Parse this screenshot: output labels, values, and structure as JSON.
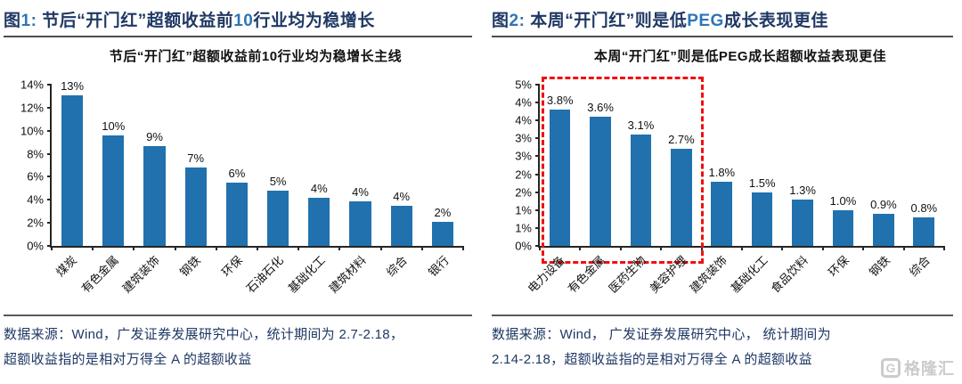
{
  "page": {
    "background": "#ffffff"
  },
  "colors": {
    "caption_navy": "#1f3864",
    "caption_blue": "#2e75b6",
    "bar_blue": "#2171ae",
    "highlight_red": "#ee1111",
    "logo_gray": "#cbcbcb"
  },
  "figures": [
    {
      "caption_parts": [
        {
          "text": "图",
          "color": "navy"
        },
        {
          "text": "1:",
          "color": "blue"
        },
        {
          "text": " 节后“开门红”超额收益前",
          "color": "navy"
        },
        {
          "text": "10",
          "color": "blue"
        },
        {
          "text": "行业均为稳增长",
          "color": "navy"
        }
      ],
      "source_lines": [
        "数据来源：Wind，广发证券发展研究中心，统计期间为 2.7-2.18，",
        "超额收益指的是相对万得全 A 的超额收益"
      ]
    },
    {
      "caption_parts": [
        {
          "text": "图",
          "color": "navy"
        },
        {
          "text": "2:",
          "color": "blue"
        },
        {
          "text": " 本周“开门红”则是低",
          "color": "navy"
        },
        {
          "text": "PEG",
          "color": "blue"
        },
        {
          "text": "成长表现更佳",
          "color": "navy"
        }
      ],
      "source_lines": [
        "数据来源：Wind， 广发证券发展研究中心， 统计期间为",
        "2.14-2.18，超额收益指的是相对万得全 A 的超额收益"
      ]
    }
  ],
  "chart_data": [
    {
      "type": "bar",
      "title": "节后“开门红”超额收益前10行业均为稳增长主线",
      "categories": [
        "煤炭",
        "有色金属",
        "建筑装饰",
        "钢铁",
        "环保",
        "石油石化",
        "基础化工",
        "建筑材料",
        "综合",
        "银行"
      ],
      "values": [
        13.1,
        9.6,
        8.7,
        6.8,
        5.5,
        4.8,
        4.2,
        3.9,
        3.5,
        2.1
      ],
      "bar_labels": [
        "13%",
        "10%",
        "9%",
        "7%",
        "6%",
        "5%",
        "4%",
        "4%",
        "4%",
        "2%"
      ],
      "ylim": [
        0,
        14
      ],
      "yticks": [
        {
          "v": 0,
          "label": "0%"
        },
        {
          "v": 2,
          "label": "2%"
        },
        {
          "v": 4,
          "label": "4%"
        },
        {
          "v": 6,
          "label": "6%"
        },
        {
          "v": 8,
          "label": "8%"
        },
        {
          "v": 10,
          "label": "10%"
        },
        {
          "v": 12,
          "label": "12%"
        },
        {
          "v": 14,
          "label": "14%"
        }
      ],
      "bar_color": "#2171ae",
      "grid": false,
      "legend": "none"
    },
    {
      "type": "bar",
      "title": "本周“开门红”则是低PEG成长超额收益表现更佳",
      "categories": [
        "电力设备",
        "有色金属",
        "医药生物",
        "美容护理",
        "建筑装饰",
        "基础化工",
        "食品饮料",
        "环保",
        "钢铁",
        "综合"
      ],
      "values": [
        3.8,
        3.6,
        3.1,
        2.7,
        1.8,
        1.5,
        1.3,
        1.0,
        0.9,
        0.8
      ],
      "bar_labels": [
        "3.8%",
        "3.6%",
        "3.1%",
        "2.7%",
        "1.8%",
        "1.5%",
        "1.3%",
        "1.0%",
        "0.9%",
        "0.8%"
      ],
      "ylim": [
        0,
        4.5
      ],
      "yticks": [
        {
          "v": 0,
          "label": "0%"
        },
        {
          "v": 0.5,
          "label": "1%"
        },
        {
          "v": 1,
          "label": "1%"
        },
        {
          "v": 1.5,
          "label": "2%"
        },
        {
          "v": 2,
          "label": "2%"
        },
        {
          "v": 2.5,
          "label": "3%"
        },
        {
          "v": 3,
          "label": "3%"
        },
        {
          "v": 3.5,
          "label": "4%"
        },
        {
          "v": 4,
          "label": "4%"
        },
        {
          "v": 4.5,
          "label": "5%"
        }
      ],
      "bar_color": "#2171ae",
      "grid": false,
      "legend": "none",
      "highlight_box": {
        "from_category": 0,
        "to_category": 3,
        "color": "#ee1111",
        "style": "dashed"
      }
    }
  ],
  "logo": {
    "icon": "G",
    "text": "格隆汇"
  }
}
